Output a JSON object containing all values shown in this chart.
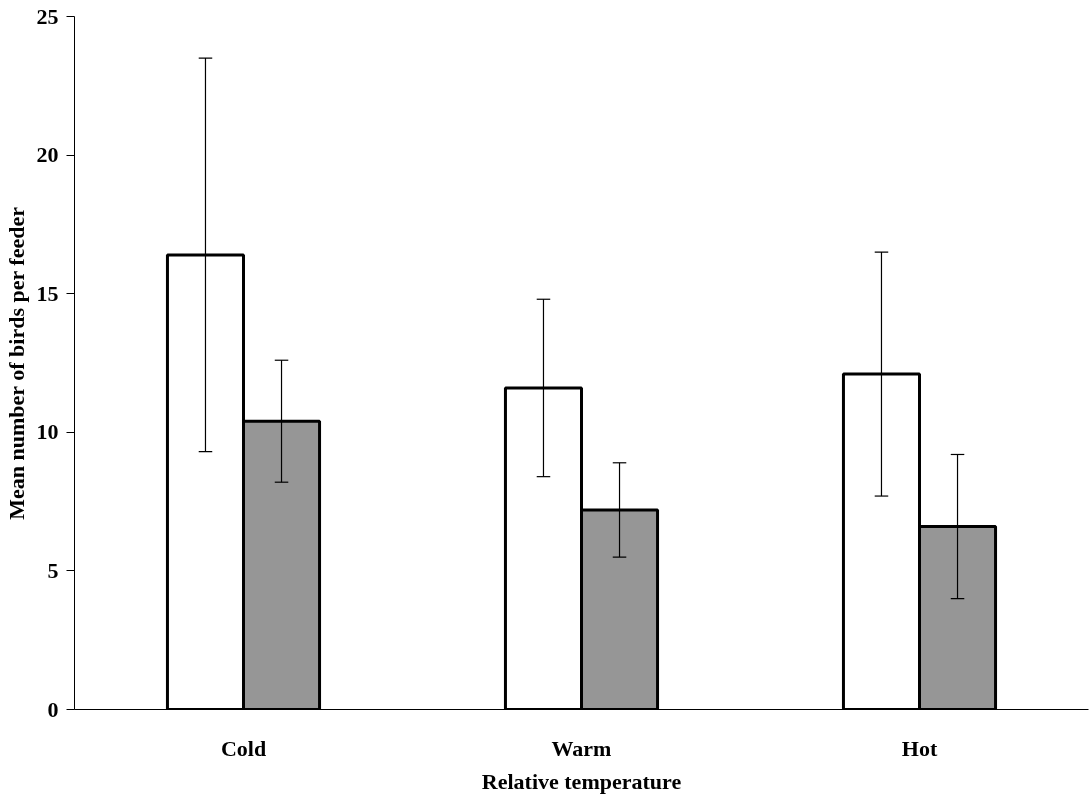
{
  "chart_data": {
    "type": "bar",
    "xlabel": "Relative temperature",
    "ylabel": "Mean number of birds per feeder",
    "categories": [
      "Cold",
      "Warm",
      "Hot"
    ],
    "series": [
      {
        "color": "#ffffff",
        "values": [
          16.4,
          11.6,
          12.1
        ],
        "errors": [
          7.1,
          3.2,
          4.4
        ]
      },
      {
        "color": "#969696",
        "values": [
          10.4,
          7.2,
          6.6
        ],
        "errors": [
          2.2,
          1.7,
          2.6
        ]
      }
    ],
    "ylim": [
      0,
      25
    ],
    "yticks": [
      0,
      5,
      10,
      15,
      20,
      25
    ],
    "grid": false
  }
}
